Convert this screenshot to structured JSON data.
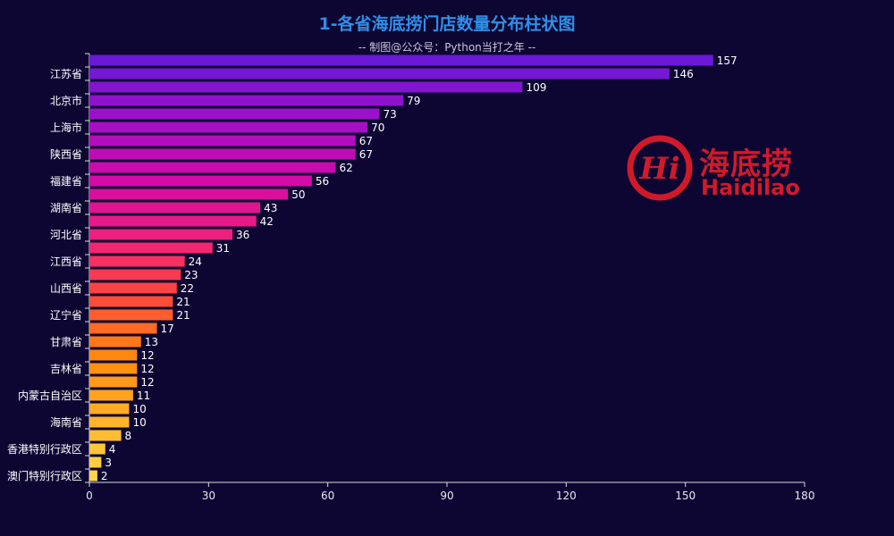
{
  "chart_data": {
    "type": "bar",
    "orientation": "horizontal",
    "title": "1-各省海底捞门店数量分布柱状图",
    "subtitle": "-- 制图@公众号：Python当打之年 --",
    "categories": [
      "",
      "江苏省",
      "",
      "北京市",
      "",
      "上海市",
      "",
      "陕西省",
      "",
      "福建省",
      "",
      "湖南省",
      "",
      "河北省",
      "",
      "江西省",
      "",
      "山西省",
      "",
      "辽宁省",
      "",
      "甘肃省",
      "",
      "吉林省",
      "",
      "内蒙古自治区",
      "",
      "海南省",
      "",
      "香港特别行政区",
      "",
      "澳门特别行政区"
    ],
    "values": [
      157,
      146,
      109,
      79,
      73,
      70,
      67,
      67,
      62,
      56,
      50,
      43,
      42,
      36,
      31,
      24,
      23,
      22,
      21,
      21,
      17,
      13,
      12,
      12,
      12,
      11,
      10,
      10,
      8,
      4,
      3,
      2
    ],
    "xlim": [
      0,
      180
    ],
    "xticks": [
      0,
      30,
      60,
      90,
      120,
      150,
      180
    ],
    "grid": false,
    "color_gradient": [
      "#6a1ad6",
      "#a010c8",
      "#d30aa8",
      "#f0207a",
      "#ff4a3a",
      "#ff8a10",
      "#ffb028",
      "#ffd84a"
    ]
  },
  "logo": {
    "text_cn": "海底捞",
    "text_en": "Haidilao",
    "mark": "Hi",
    "color": "#d01a2a"
  }
}
